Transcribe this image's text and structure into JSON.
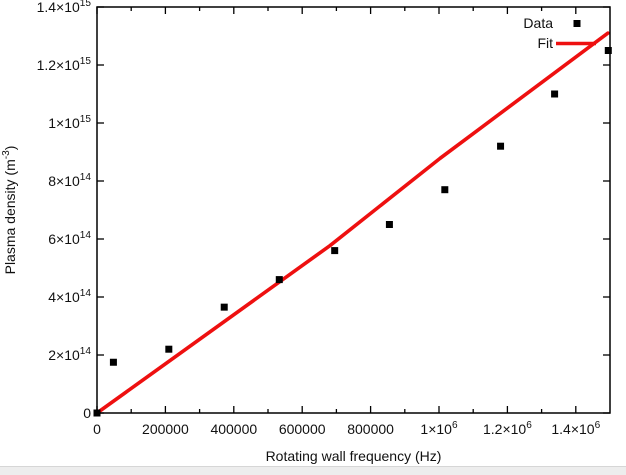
{
  "colors": {
    "background": "#ffffff",
    "frame": "#000000",
    "text": "#111111",
    "marker": "#000000",
    "fit_line": "#ee1010",
    "statusbar_bg": "#ededed",
    "statusbar_border": "#d6d6d6"
  },
  "statusbar": {
    "visible": true
  },
  "chart_data": {
    "type": "scatter",
    "title": "",
    "xlabel": "Rotating wall frequency (Hz)",
    "ylabel": "Plasma density (m^-3)",
    "xlim": [
      0,
      1500000
    ],
    "ylim": [
      0,
      1400000000000000.0
    ],
    "grid": false,
    "x_major_ticks": [
      0,
      200000,
      400000,
      600000,
      800000,
      1000000,
      1200000,
      1400000
    ],
    "x_tick_labels": [
      "0",
      "200000",
      "400000",
      "600000",
      "800000",
      "1×10^6",
      "1.2×10^6",
      "1.4×10^6"
    ],
    "x_minor_step": 100000,
    "y_major_ticks": [
      0,
      200000000000000.0,
      400000000000000.0,
      600000000000000.0,
      800000000000000.0,
      1000000000000000.0,
      1200000000000000.0,
      1400000000000000.0
    ],
    "y_tick_labels": [
      "0",
      "2×10^14",
      "4×10^14",
      "6×10^14",
      "8×10^14",
      "1×10^15",
      "1.2×10^15",
      "1.4×10^15"
    ],
    "legend": {
      "position": "top-right",
      "entries": [
        "Data",
        "Fit"
      ]
    },
    "series": [
      {
        "name": "Data",
        "type": "scatter",
        "marker": "square",
        "color": "#000000",
        "x": [
          0,
          48000,
          210000,
          372000,
          533000,
          695000,
          855000,
          1017000,
          1180000,
          1338000,
          1495000
        ],
        "y": [
          0,
          175000000000000.0,
          220000000000000.0,
          365000000000000.0,
          460000000000000.0,
          560000000000000.0,
          650000000000000.0,
          770000000000000.0,
          920000000000000.0,
          1100000000000000.0,
          1250000000000000.0
        ]
      },
      {
        "name": "Fit",
        "type": "line",
        "color": "#ee1010",
        "x": [
          0,
          681000,
          1003000,
          1494000
        ],
        "y": [
          0,
          577000000000000.0,
          878000000000000.0,
          1310000000000000.0
        ]
      }
    ]
  }
}
